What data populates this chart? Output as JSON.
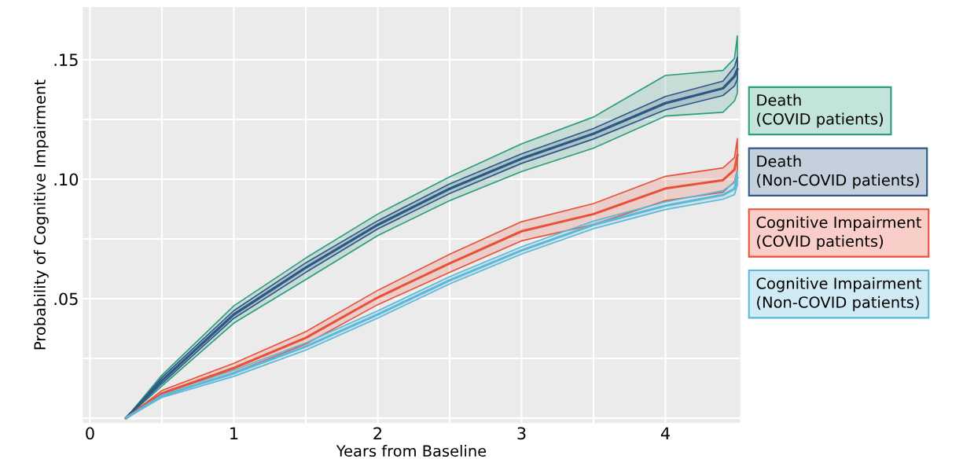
{
  "chart_data": {
    "type": "line",
    "xlabel": "Years from Baseline",
    "ylabel": "Probability of Cognitive Impairment",
    "xlim": [
      -0.05,
      4.52
    ],
    "ylim": [
      -0.002,
      0.172
    ],
    "xticks": [
      0,
      {
        "value": 0.5,
        "label": null
      },
      1,
      {
        "value": 1.5,
        "label": null
      },
      2,
      {
        "value": 2.5,
        "label": null
      },
      3,
      {
        "value": 3.5,
        "label": null
      },
      4
    ],
    "yticks": [
      {
        "value": 0,
        "label": null
      },
      {
        "value": 0.025,
        "label": null
      },
      {
        "value": 0.05,
        "label": ".05"
      },
      {
        "value": 0.075,
        "label": null
      },
      {
        "value": 0.1,
        "label": ".10"
      },
      {
        "value": 0.125,
        "label": null
      },
      {
        "value": 0.15,
        "label": ".15"
      }
    ],
    "grid": true,
    "legend": "right",
    "x": [
      0.25,
      0.5,
      1,
      1.5,
      2,
      2.5,
      3,
      3.5,
      4,
      4.4,
      4.48,
      4.5
    ],
    "series": [
      {
        "name": "Death\n(COVID patients)",
        "color": "#2a9d7f",
        "values": [
          0,
          0.0157,
          0.0434,
          0.063,
          0.0809,
          0.096,
          0.1086,
          0.119,
          0.1318,
          0.138,
          0.143,
          0.146
        ],
        "lower": [
          0,
          0.0135,
          0.0398,
          0.058,
          0.0764,
          0.091,
          0.1032,
          0.113,
          0.1264,
          0.128,
          0.1327,
          0.136
        ],
        "upper": [
          0,
          0.018,
          0.047,
          0.067,
          0.0854,
          0.101,
          0.1148,
          0.126,
          0.1434,
          0.1455,
          0.1505,
          0.16
        ]
      },
      {
        "name": "Death\n(Non-COVID patients)",
        "color": "#2f5687",
        "values": [
          0,
          0.0157,
          0.0434,
          0.063,
          0.0809,
          0.096,
          0.1086,
          0.119,
          0.1318,
          0.138,
          0.143,
          0.146
        ],
        "lower": [
          0,
          0.0145,
          0.0418,
          0.061,
          0.0792,
          0.094,
          0.1066,
          0.1168,
          0.129,
          0.135,
          0.139,
          0.142
        ],
        "upper": [
          0,
          0.017,
          0.045,
          0.065,
          0.0826,
          0.098,
          0.1106,
          0.1212,
          0.1346,
          0.141,
          0.147,
          0.151
        ]
      },
      {
        "name": "Cognitive Impairment\n(COVID patients)",
        "color": "#e8503a",
        "values": [
          0,
          0.0104,
          0.021,
          0.0336,
          0.0505,
          0.0648,
          0.0782,
          0.0854,
          0.0961,
          0.0996,
          0.104,
          0.11
        ],
        "lower": [
          0,
          0.0092,
          0.019,
          0.031,
          0.0475,
          0.061,
          0.0742,
          0.081,
          0.091,
          0.0945,
          0.099,
          0.104
        ],
        "upper": [
          0,
          0.0116,
          0.023,
          0.0362,
          0.0535,
          0.0686,
          0.0822,
          0.0898,
          0.1012,
          0.1047,
          0.109,
          0.117
        ]
      },
      {
        "name": "Cognitive Impairment\n(Non-COVID patients)",
        "color": "#5bb8d9",
        "values": [
          0,
          0.0095,
          0.0188,
          0.03,
          0.0434,
          0.0577,
          0.0702,
          0.0809,
          0.0889,
          0.0934,
          0.096,
          0.1005
        ],
        "lower": [
          0,
          0.0087,
          0.0175,
          0.0285,
          0.0419,
          0.0562,
          0.0687,
          0.0793,
          0.0873,
          0.0916,
          0.0935,
          0.0975
        ],
        "upper": [
          0,
          0.0103,
          0.0201,
          0.0315,
          0.0449,
          0.0592,
          0.0717,
          0.0825,
          0.0905,
          0.0952,
          0.0985,
          0.1035
        ]
      }
    ]
  }
}
